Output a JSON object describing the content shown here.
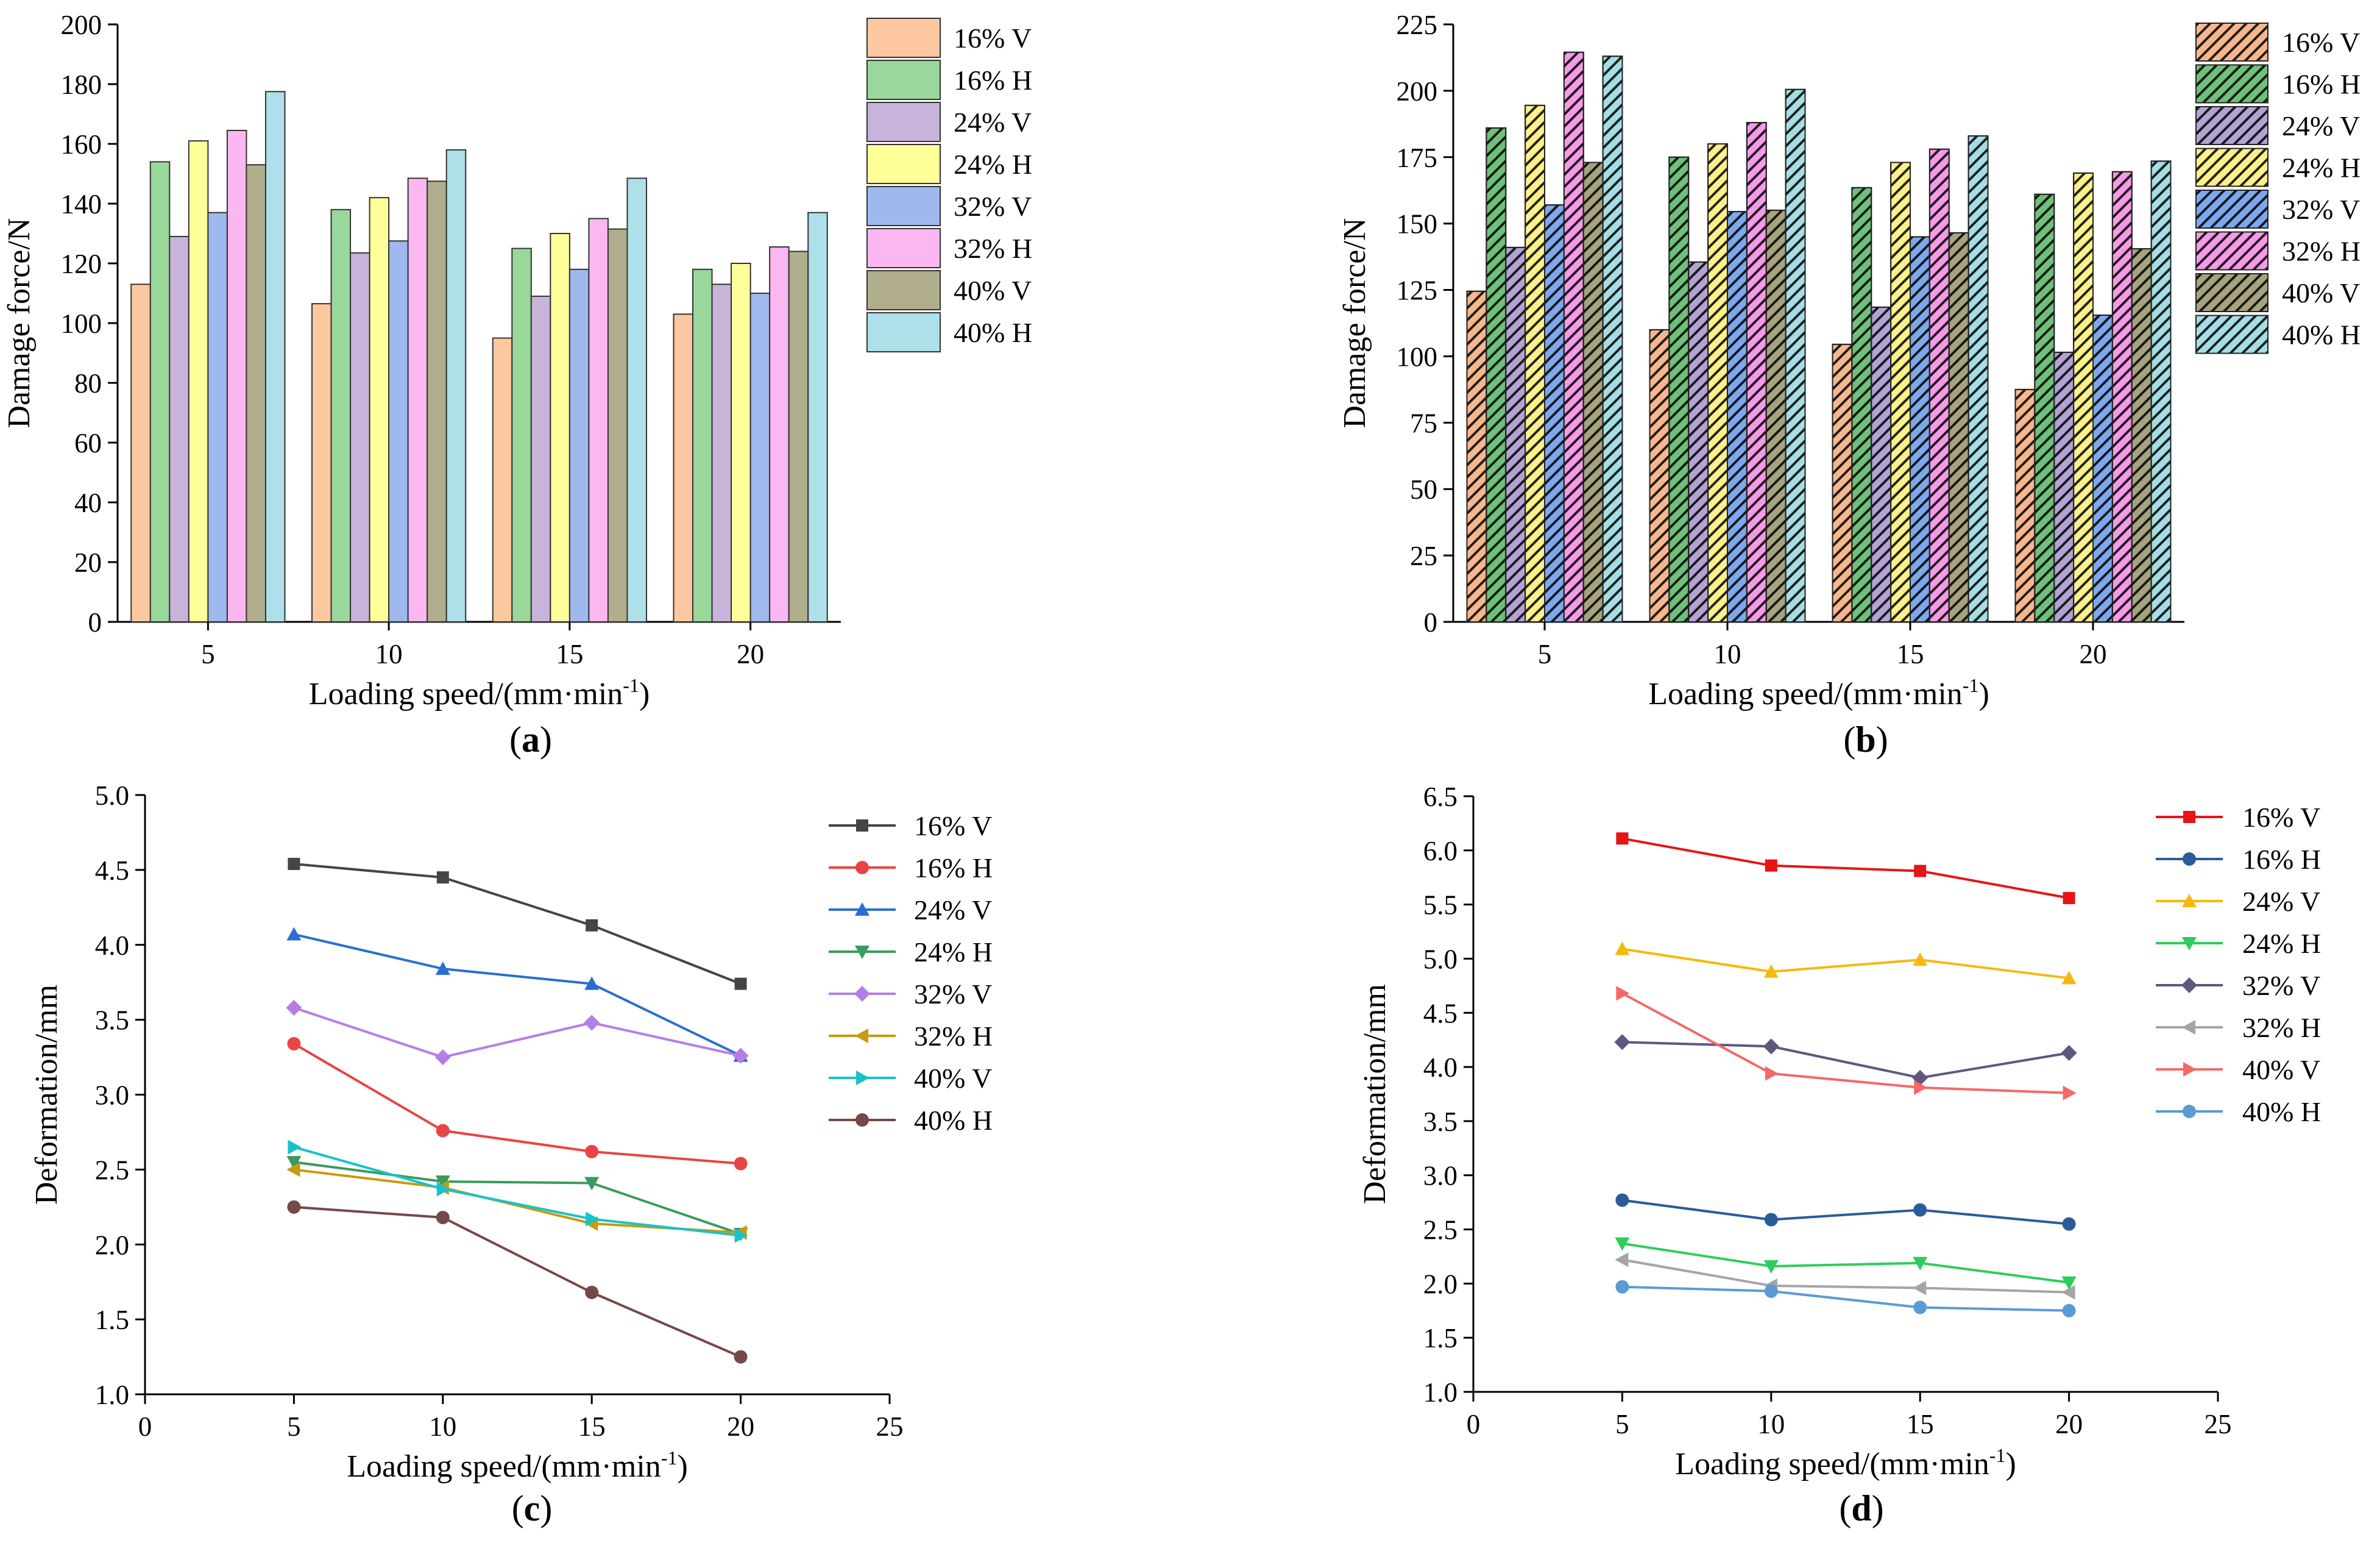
{
  "chart_data": [
    {
      "type": "bar",
      "panel_label": "a",
      "categories": [
        "5",
        "10",
        "15",
        "20"
      ],
      "xlabel": "Loading speed/(mm·min",
      "xlabel_sup": "-1",
      "xlabel_close": ")",
      "ylabel": "Damage force/N",
      "ylim": [
        0,
        200
      ],
      "yticks": [
        "0",
        "20",
        "40",
        "60",
        "80",
        "100",
        "120",
        "140",
        "160",
        "180",
        "200"
      ],
      "hatched": false,
      "legend_position": "top-right",
      "series": [
        {
          "name": "16% V",
          "color": "#fdc89f",
          "values": [
            113,
            106.5,
            95,
            103
          ]
        },
        {
          "name": "16% H",
          "color": "#9ad79a",
          "values": [
            154,
            138,
            125,
            118
          ]
        },
        {
          "name": "24% V",
          "color": "#c8b3da",
          "values": [
            129,
            123.5,
            109,
            113
          ]
        },
        {
          "name": "24% H",
          "color": "#ffff9a",
          "values": [
            161,
            142,
            130,
            120
          ]
        },
        {
          "name": "32% V",
          "color": "#9fb9ef",
          "values": [
            137,
            127.5,
            118,
            110
          ]
        },
        {
          "name": "32% H",
          "color": "#fbb8f0",
          "values": [
            164.5,
            148.5,
            135,
            125.5
          ]
        },
        {
          "name": "40% V",
          "color": "#b0ae8c",
          "values": [
            153,
            147.5,
            131.5,
            124
          ]
        },
        {
          "name": "40% H",
          "color": "#ade0e8",
          "values": [
            177.5,
            158,
            148.5,
            137
          ]
        }
      ]
    },
    {
      "type": "bar",
      "panel_label": "b",
      "categories": [
        "5",
        "10",
        "15",
        "20"
      ],
      "xlabel": "Loading speed/(mm·min",
      "xlabel_sup": "-1",
      "xlabel_close": ")",
      "ylabel": "Damage force/N",
      "ylim": [
        0,
        225
      ],
      "yticks": [
        "0",
        "25",
        "50",
        "75",
        "100",
        "125",
        "150",
        "175",
        "200",
        "225"
      ],
      "hatched": true,
      "legend_position": "top-right",
      "series": [
        {
          "name": "16% V",
          "color": "#f6b78f",
          "values": [
            124.5,
            110,
            104.5,
            87.5
          ]
        },
        {
          "name": "16% H",
          "color": "#6fc07a",
          "values": [
            186,
            175,
            163.5,
            161
          ]
        },
        {
          "name": "24% V",
          "color": "#b2a3d4",
          "values": [
            141,
            135.5,
            118.5,
            101.5
          ]
        },
        {
          "name": "24% H",
          "color": "#fbf08a",
          "values": [
            194.5,
            180,
            173,
            169
          ]
        },
        {
          "name": "32% V",
          "color": "#7ea8ec",
          "values": [
            157,
            154.5,
            145,
            115.5
          ]
        },
        {
          "name": "32% H",
          "color": "#f49ae6",
          "values": [
            214.5,
            188,
            178,
            169.5
          ]
        },
        {
          "name": "40% V",
          "color": "#a6a47f",
          "values": [
            173,
            155,
            146.5,
            140.5
          ]
        },
        {
          "name": "40% H",
          "color": "#a6dde5",
          "values": [
            213,
            200.5,
            183,
            173.5
          ]
        }
      ]
    },
    {
      "type": "line",
      "panel_label": "c",
      "x": [
        5,
        10,
        15,
        20
      ],
      "xlim": [
        0,
        25
      ],
      "xticks": [
        "0",
        "5",
        "10",
        "15",
        "20",
        "25"
      ],
      "xlabel": "Loading speed/(mm·min",
      "xlabel_sup": "-1",
      "xlabel_close": ")",
      "ylabel": "Deformation/mm",
      "ylim": [
        1.0,
        5.0
      ],
      "yticks": [
        "1.0",
        "1.5",
        "2.0",
        "2.5",
        "3.0",
        "3.5",
        "4.0",
        "4.5",
        "5.0"
      ],
      "legend_position": "top-right",
      "series": [
        {
          "name": "16% V",
          "color": "#454545",
          "marker": "square",
          "values": [
            4.54,
            4.45,
            4.13,
            3.74
          ]
        },
        {
          "name": "16% H",
          "color": "#e94444",
          "marker": "circle",
          "values": [
            3.34,
            2.76,
            2.62,
            2.54
          ]
        },
        {
          "name": "24% V",
          "color": "#2a6fcf",
          "marker": "triangle-up",
          "values": [
            4.07,
            3.84,
            3.74,
            3.26
          ]
        },
        {
          "name": "24% H",
          "color": "#3a9a60",
          "marker": "triangle-down",
          "values": [
            2.55,
            2.42,
            2.41,
            2.07
          ]
        },
        {
          "name": "32% V",
          "color": "#b77de6",
          "marker": "diamond",
          "values": [
            3.58,
            3.25,
            3.48,
            3.26
          ]
        },
        {
          "name": "32% H",
          "color": "#c89a0f",
          "marker": "triangle-left",
          "values": [
            2.5,
            2.38,
            2.14,
            2.08
          ]
        },
        {
          "name": "40% V",
          "color": "#19c2c8",
          "marker": "triangle-right",
          "values": [
            2.65,
            2.37,
            2.17,
            2.06
          ]
        },
        {
          "name": "40% H",
          "color": "#764848",
          "marker": "circle",
          "values": [
            2.25,
            2.18,
            1.68,
            1.25
          ]
        }
      ]
    },
    {
      "type": "line",
      "panel_label": "d",
      "x": [
        5,
        10,
        15,
        20
      ],
      "xlim": [
        0,
        25
      ],
      "xticks": [
        "0",
        "5",
        "10",
        "15",
        "20",
        "25"
      ],
      "xlabel": "Loading speed/(mm·min",
      "xlabel_sup": "-1",
      "xlabel_close": ")",
      "ylabel": "Deformation/mm",
      "ylim": [
        1.0,
        6.5
      ],
      "yticks": [
        "1.0",
        "1.5",
        "2.0",
        "2.5",
        "3.0",
        "3.5",
        "4.0",
        "4.5",
        "5.0",
        "5.5",
        "6.0",
        "6.5"
      ],
      "legend_position": "top-right",
      "series": [
        {
          "name": "16% V",
          "color": "#e51515",
          "marker": "square",
          "values": [
            6.11,
            5.86,
            5.81,
            5.56
          ]
        },
        {
          "name": "16% H",
          "color": "#2a5c99",
          "marker": "circle",
          "values": [
            2.77,
            2.59,
            2.68,
            2.55
          ]
        },
        {
          "name": "24% V",
          "color": "#f5b90c",
          "marker": "triangle-up",
          "values": [
            5.09,
            4.88,
            4.99,
            4.82
          ]
        },
        {
          "name": "24% H",
          "color": "#2fcc5b",
          "marker": "triangle-down",
          "values": [
            2.37,
            2.16,
            2.19,
            2.01
          ]
        },
        {
          "name": "32% V",
          "color": "#5c5880",
          "marker": "diamond",
          "values": [
            4.23,
            4.19,
            3.9,
            4.13
          ]
        },
        {
          "name": "32% H",
          "color": "#a5a5a5",
          "marker": "triangle-left",
          "values": [
            2.22,
            1.98,
            1.96,
            1.92
          ]
        },
        {
          "name": "40% V",
          "color": "#f56868",
          "marker": "triangle-right",
          "values": [
            4.68,
            3.94,
            3.81,
            3.76
          ]
        },
        {
          "name": "40% H",
          "color": "#5b9bd5",
          "marker": "circle",
          "values": [
            1.97,
            1.93,
            1.78,
            1.75
          ]
        }
      ]
    }
  ]
}
